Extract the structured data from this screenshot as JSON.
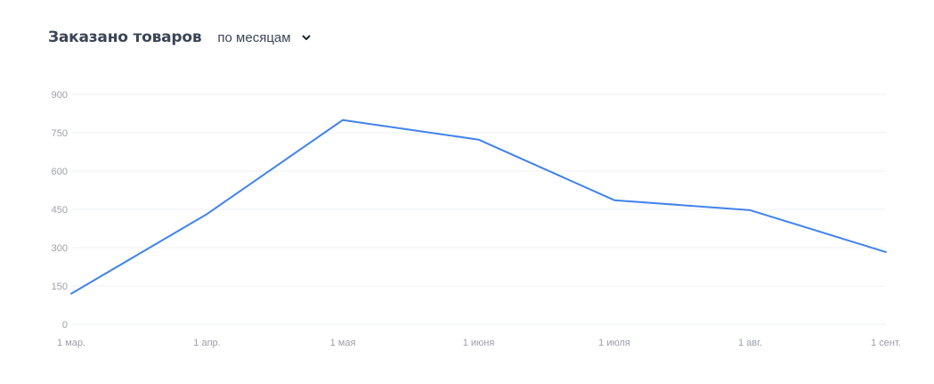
{
  "header": {
    "title": "Заказано товаров",
    "period_select": "по месяцам",
    "chevron_icon": "chevron-down-icon"
  },
  "colors": {
    "line": "#4283ea",
    "grid": "#eef0f3",
    "tick_text": "#9aa0aa",
    "title_text": "#3a4556"
  },
  "chart_data": {
    "type": "line",
    "title": "Заказано товаров",
    "xlabel": "",
    "ylabel": "",
    "categories": [
      "1 мар.",
      "1 апр.",
      "1 мая",
      "1 июня",
      "1 июля",
      "1 авг.",
      "1 сент."
    ],
    "series": [
      {
        "values": [
          120,
          432,
          800,
          723,
          486,
          447,
          283
        ]
      }
    ],
    "ylim": [
      0,
      900
    ],
    "yticks": [
      0,
      150,
      300,
      450,
      600,
      750,
      900
    ],
    "grid": true,
    "legend": "none"
  }
}
